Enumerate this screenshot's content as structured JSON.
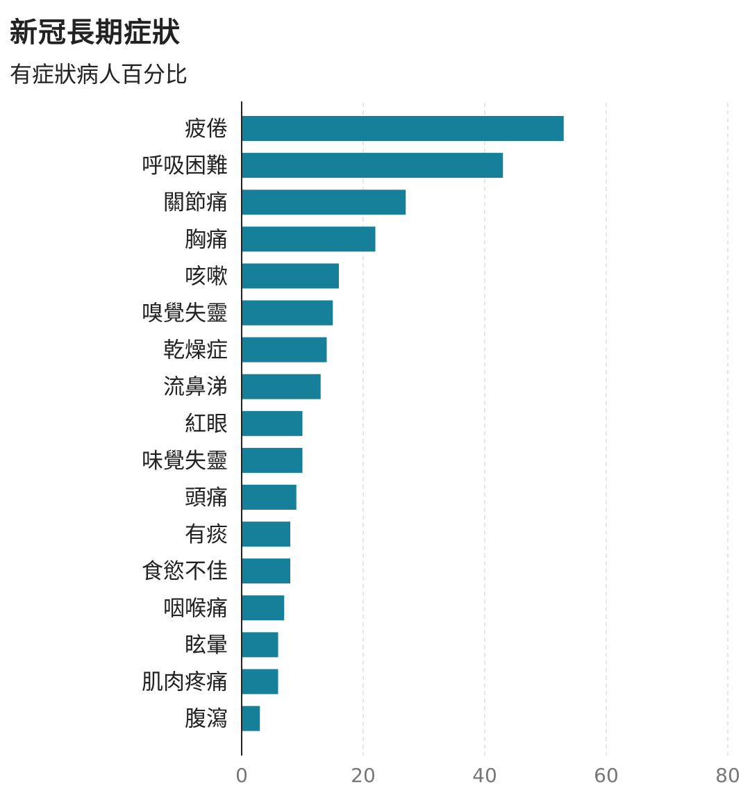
{
  "chart_data": {
    "type": "bar",
    "orientation": "horizontal",
    "title": "新冠長期症狀",
    "subtitle": "有症狀病人百分比",
    "categories": [
      "疲倦",
      "呼吸困難",
      "關節痛",
      "胸痛",
      "咳嗽",
      "嗅覺失靈",
      "乾燥症",
      "流鼻涕",
      "紅眼",
      "味覺失靈",
      "頭痛",
      "有痰",
      "食慾不佳",
      "咽喉痛",
      "眩暈",
      "肌肉疼痛",
      "腹瀉"
    ],
    "values": [
      53,
      43,
      27,
      22,
      16,
      15,
      14,
      13,
      10,
      10,
      9,
      8,
      8,
      7,
      6,
      6,
      3
    ],
    "xlim": [
      0,
      80
    ],
    "xticks": [
      0,
      20,
      40,
      60,
      80
    ],
    "xlabel": "",
    "ylabel": "",
    "grid": "vertical-dashed",
    "legend": "none",
    "colors": {
      "bar": "#16809a",
      "grid": "#dddddd",
      "axis": "#222222",
      "tick_text": "#777777",
      "category_text": "#222222"
    }
  }
}
